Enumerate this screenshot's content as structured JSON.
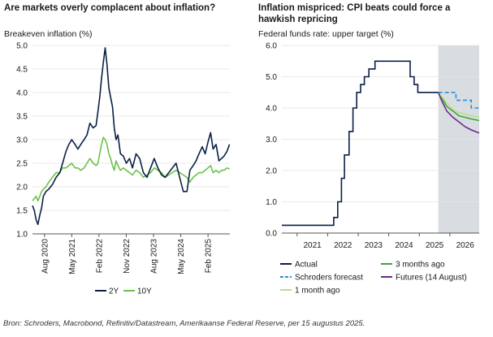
{
  "chart_data": [
    {
      "type": "line",
      "title": "Are markets overly complacent about inflation?",
      "ylabel": "Breakeven inflation (%)",
      "xlabel": "",
      "ylim": [
        1.0,
        5.0
      ],
      "yticks": [
        "5.0",
        "4.5",
        "4.0",
        "3.5",
        "3.0",
        "2.5",
        "2.0",
        "1.5",
        "1.0"
      ],
      "xticks": [
        {
          "label": "Aug 2020",
          "t": 2020.58
        },
        {
          "label": "May 2021",
          "t": 2021.33
        },
        {
          "label": "Feb 2022",
          "t": 2022.08
        },
        {
          "label": "Nov 2022",
          "t": 2022.83
        },
        {
          "label": "Aug 2023",
          "t": 2023.58
        },
        {
          "label": "May 2024",
          "t": 2024.33
        },
        {
          "label": "Feb 2025",
          "t": 2025.08
        }
      ],
      "xrange": [
        2020.25,
        2025.68
      ],
      "series": [
        {
          "name": "2Y",
          "color": "#0b1f45",
          "points": [
            [
              2020.25,
              1.6
            ],
            [
              2020.3,
              1.5
            ],
            [
              2020.35,
              1.3
            ],
            [
              2020.4,
              1.2
            ],
            [
              2020.45,
              1.4
            ],
            [
              2020.5,
              1.55
            ],
            [
              2020.55,
              1.8
            ],
            [
              2020.62,
              1.9
            ],
            [
              2020.7,
              1.95
            ],
            [
              2020.8,
              2.05
            ],
            [
              2020.9,
              2.2
            ],
            [
              2021.0,
              2.3
            ],
            [
              2021.08,
              2.5
            ],
            [
              2021.17,
              2.75
            ],
            [
              2021.25,
              2.9
            ],
            [
              2021.33,
              3.0
            ],
            [
              2021.42,
              2.9
            ],
            [
              2021.5,
              2.8
            ],
            [
              2021.58,
              2.9
            ],
            [
              2021.67,
              3.0
            ],
            [
              2021.75,
              3.1
            ],
            [
              2021.83,
              3.35
            ],
            [
              2021.92,
              3.25
            ],
            [
              2022.0,
              3.3
            ],
            [
              2022.05,
              3.6
            ],
            [
              2022.1,
              3.9
            ],
            [
              2022.15,
              4.3
            ],
            [
              2022.2,
              4.65
            ],
            [
              2022.25,
              4.95
            ],
            [
              2022.3,
              4.6
            ],
            [
              2022.35,
              4.1
            ],
            [
              2022.4,
              3.9
            ],
            [
              2022.45,
              3.7
            ],
            [
              2022.5,
              3.25
            ],
            [
              2022.55,
              3.0
            ],
            [
              2022.6,
              3.1
            ],
            [
              2022.67,
              2.7
            ],
            [
              2022.75,
              2.65
            ],
            [
              2022.83,
              2.5
            ],
            [
              2022.92,
              2.6
            ],
            [
              2023.0,
              2.4
            ],
            [
              2023.1,
              2.7
            ],
            [
              2023.2,
              2.6
            ],
            [
              2023.3,
              2.3
            ],
            [
              2023.4,
              2.2
            ],
            [
              2023.5,
              2.4
            ],
            [
              2023.6,
              2.6
            ],
            [
              2023.7,
              2.4
            ],
            [
              2023.8,
              2.25
            ],
            [
              2023.9,
              2.2
            ],
            [
              2024.0,
              2.3
            ],
            [
              2024.1,
              2.4
            ],
            [
              2024.2,
              2.5
            ],
            [
              2024.3,
              2.2
            ],
            [
              2024.4,
              1.9
            ],
            [
              2024.5,
              1.9
            ],
            [
              2024.58,
              2.35
            ],
            [
              2024.67,
              2.45
            ],
            [
              2024.75,
              2.55
            ],
            [
              2024.83,
              2.7
            ],
            [
              2024.92,
              2.85
            ],
            [
              2025.0,
              2.7
            ],
            [
              2025.08,
              2.95
            ],
            [
              2025.15,
              3.15
            ],
            [
              2025.22,
              2.8
            ],
            [
              2025.3,
              2.9
            ],
            [
              2025.38,
              2.55
            ],
            [
              2025.45,
              2.6
            ],
            [
              2025.52,
              2.65
            ],
            [
              2025.6,
              2.75
            ],
            [
              2025.67,
              2.9
            ]
          ]
        },
        {
          "name": "10Y",
          "color": "#6cc24a",
          "points": [
            [
              2020.25,
              1.7
            ],
            [
              2020.3,
              1.75
            ],
            [
              2020.35,
              1.8
            ],
            [
              2020.4,
              1.7
            ],
            [
              2020.45,
              1.8
            ],
            [
              2020.5,
              1.9
            ],
            [
              2020.55,
              1.95
            ],
            [
              2020.62,
              2.0
            ],
            [
              2020.7,
              2.1
            ],
            [
              2020.8,
              2.2
            ],
            [
              2020.9,
              2.3
            ],
            [
              2021.0,
              2.3
            ],
            [
              2021.08,
              2.4
            ],
            [
              2021.17,
              2.4
            ],
            [
              2021.25,
              2.45
            ],
            [
              2021.33,
              2.5
            ],
            [
              2021.42,
              2.4
            ],
            [
              2021.5,
              2.4
            ],
            [
              2021.58,
              2.35
            ],
            [
              2021.67,
              2.4
            ],
            [
              2021.75,
              2.5
            ],
            [
              2021.83,
              2.6
            ],
            [
              2021.92,
              2.5
            ],
            [
              2022.0,
              2.45
            ],
            [
              2022.05,
              2.5
            ],
            [
              2022.1,
              2.7
            ],
            [
              2022.15,
              2.9
            ],
            [
              2022.2,
              3.05
            ],
            [
              2022.25,
              3.0
            ],
            [
              2022.3,
              2.9
            ],
            [
              2022.35,
              2.7
            ],
            [
              2022.4,
              2.6
            ],
            [
              2022.45,
              2.45
            ],
            [
              2022.5,
              2.35
            ],
            [
              2022.55,
              2.55
            ],
            [
              2022.6,
              2.45
            ],
            [
              2022.67,
              2.35
            ],
            [
              2022.75,
              2.4
            ],
            [
              2022.83,
              2.35
            ],
            [
              2022.92,
              2.3
            ],
            [
              2023.0,
              2.25
            ],
            [
              2023.1,
              2.35
            ],
            [
              2023.2,
              2.3
            ],
            [
              2023.3,
              2.2
            ],
            [
              2023.4,
              2.25
            ],
            [
              2023.5,
              2.3
            ],
            [
              2023.6,
              2.4
            ],
            [
              2023.7,
              2.35
            ],
            [
              2023.8,
              2.3
            ],
            [
              2023.9,
              2.2
            ],
            [
              2024.0,
              2.25
            ],
            [
              2024.1,
              2.3
            ],
            [
              2024.2,
              2.35
            ],
            [
              2024.3,
              2.3
            ],
            [
              2024.4,
              2.25
            ],
            [
              2024.5,
              2.2
            ],
            [
              2024.58,
              2.1
            ],
            [
              2024.67,
              2.2
            ],
            [
              2024.75,
              2.25
            ],
            [
              2024.83,
              2.3
            ],
            [
              2024.92,
              2.3
            ],
            [
              2025.0,
              2.35
            ],
            [
              2025.08,
              2.4
            ],
            [
              2025.15,
              2.45
            ],
            [
              2025.22,
              2.3
            ],
            [
              2025.3,
              2.35
            ],
            [
              2025.38,
              2.3
            ],
            [
              2025.45,
              2.35
            ],
            [
              2025.52,
              2.35
            ],
            [
              2025.6,
              2.4
            ],
            [
              2025.67,
              2.38
            ]
          ]
        }
      ],
      "legend": [
        "2Y",
        "10Y"
      ]
    },
    {
      "type": "line",
      "title": "Inflation mispriced: CPI beats could force a hawkish repricing",
      "ylabel": "Federal funds rate: upper target (%)",
      "xlabel": "",
      "ylim": [
        0.0,
        6.0
      ],
      "yticks": [
        "6.0",
        "5.0",
        "4.0",
        "3.0",
        "2.0",
        "1.0",
        "0.0"
      ],
      "xticks": [
        {
          "label": "2021",
          "t": 2021.5
        },
        {
          "label": "2022",
          "t": 2022.5
        },
        {
          "label": "2023",
          "t": 2023.5
        },
        {
          "label": "2024",
          "t": 2024.5
        },
        {
          "label": "2025",
          "t": 2025.5
        },
        {
          "label": "2026",
          "t": 2026.5
        }
      ],
      "xrange": [
        2020.5,
        2026.96
      ],
      "forecast_shading_from": 2025.62,
      "series": [
        {
          "name": "Actual",
          "color": "#0b1f45",
          "style": "solid",
          "points": [
            [
              2020.5,
              0.25
            ],
            [
              2021.7,
              0.25
            ],
            [
              2022.2,
              0.25
            ],
            [
              2022.2,
              0.5
            ],
            [
              2022.33,
              0.5
            ],
            [
              2022.33,
              1.0
            ],
            [
              2022.45,
              1.0
            ],
            [
              2022.45,
              1.75
            ],
            [
              2022.55,
              1.75
            ],
            [
              2022.55,
              2.5
            ],
            [
              2022.7,
              2.5
            ],
            [
              2022.7,
              3.25
            ],
            [
              2022.83,
              3.25
            ],
            [
              2022.83,
              4.0
            ],
            [
              2022.95,
              4.0
            ],
            [
              2022.95,
              4.5
            ],
            [
              2023.08,
              4.5
            ],
            [
              2023.08,
              4.75
            ],
            [
              2023.2,
              4.75
            ],
            [
              2023.2,
              5.0
            ],
            [
              2023.35,
              5.0
            ],
            [
              2023.35,
              5.25
            ],
            [
              2023.55,
              5.25
            ],
            [
              2023.55,
              5.5
            ],
            [
              2024.7,
              5.5
            ],
            [
              2024.7,
              5.0
            ],
            [
              2024.83,
              5.0
            ],
            [
              2024.83,
              4.75
            ],
            [
              2024.95,
              4.75
            ],
            [
              2024.95,
              4.5
            ],
            [
              2025.62,
              4.5
            ]
          ]
        },
        {
          "name": "Schroders forecast",
          "color": "#2b8fd6",
          "style": "dashed",
          "points": [
            [
              2025.62,
              4.5
            ],
            [
              2026.2,
              4.5
            ],
            [
              2026.2,
              4.25
            ],
            [
              2026.7,
              4.25
            ],
            [
              2026.7,
              4.0
            ],
            [
              2026.96,
              4.0
            ]
          ]
        },
        {
          "name": "1 month ago",
          "color": "#b7e08a",
          "style": "solid",
          "points": [
            [
              2025.62,
              4.5
            ],
            [
              2025.75,
              4.35
            ],
            [
              2025.9,
              4.15
            ],
            [
              2026.1,
              3.95
            ],
            [
              2026.3,
              3.85
            ],
            [
              2026.5,
              3.8
            ],
            [
              2026.7,
              3.75
            ],
            [
              2026.96,
              3.7
            ]
          ]
        },
        {
          "name": "3 months ago",
          "color": "#3fa535",
          "style": "solid",
          "points": [
            [
              2025.62,
              4.5
            ],
            [
              2025.75,
              4.3
            ],
            [
              2025.9,
              4.05
            ],
            [
              2026.1,
              3.9
            ],
            [
              2026.3,
              3.75
            ],
            [
              2026.5,
              3.7
            ],
            [
              2026.7,
              3.65
            ],
            [
              2026.96,
              3.6
            ]
          ]
        },
        {
          "name": "Futures (14 August)",
          "color": "#6b2a8c",
          "style": "solid",
          "points": [
            [
              2025.62,
              4.5
            ],
            [
              2025.75,
              4.2
            ],
            [
              2025.9,
              3.9
            ],
            [
              2026.1,
              3.7
            ],
            [
              2026.3,
              3.55
            ],
            [
              2026.5,
              3.4
            ],
            [
              2026.7,
              3.3
            ],
            [
              2026.96,
              3.2
            ]
          ]
        }
      ],
      "legend": [
        "Actual",
        "3 months ago",
        "Schroders forecast",
        "Futures (14 August)",
        "1 month ago"
      ]
    }
  ],
  "source": "Bron: Schroders, Macrobond, Refinitiv/Datastream, Amerikaanse Federal Reserve, per 15 augustus 2025."
}
